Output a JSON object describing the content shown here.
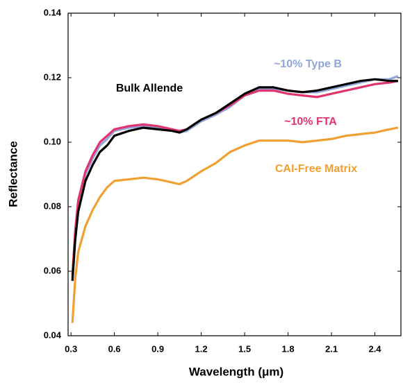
{
  "chart_data": {
    "type": "line",
    "xlabel": "Wavelength (μm)",
    "ylabel": "Reflectance",
    "x": [
      0.31,
      0.33,
      0.35,
      0.4,
      0.45,
      0.5,
      0.55,
      0.6,
      0.7,
      0.8,
      0.9,
      1.0,
      1.05,
      1.1,
      1.2,
      1.3,
      1.4,
      1.5,
      1.6,
      1.7,
      1.8,
      1.9,
      2.0,
      2.1,
      2.2,
      2.3,
      2.4,
      2.5,
      2.56
    ],
    "series": [
      {
        "name": "~10% Type B",
        "color": "#8fa6dc",
        "values": [
          0.058,
          0.071,
          0.08,
          0.09,
          0.095,
          0.099,
          0.101,
          0.1035,
          0.1045,
          0.105,
          0.1045,
          0.1035,
          0.103,
          0.1035,
          0.1065,
          0.1085,
          0.111,
          0.1145,
          0.1165,
          0.1165,
          0.116,
          0.1155,
          0.1155,
          0.1165,
          0.1175,
          0.1185,
          0.1195,
          0.1195,
          0.1205
        ]
      },
      {
        "name": "~10% FTA",
        "color": "#e2336f",
        "values": [
          0.059,
          0.073,
          0.082,
          0.091,
          0.096,
          0.1,
          0.102,
          0.104,
          0.105,
          0.1055,
          0.105,
          0.104,
          0.1035,
          0.104,
          0.107,
          0.109,
          0.1115,
          0.1145,
          0.116,
          0.116,
          0.115,
          0.1145,
          0.114,
          0.115,
          0.116,
          0.117,
          0.118,
          0.1185,
          0.119
        ]
      },
      {
        "name": "Bulk Allende",
        "color": "#000000",
        "values": [
          0.057,
          0.07,
          0.0785,
          0.088,
          0.093,
          0.097,
          0.099,
          0.102,
          0.1035,
          0.1045,
          0.104,
          0.1035,
          0.103,
          0.104,
          0.107,
          0.109,
          0.112,
          0.115,
          0.117,
          0.117,
          0.116,
          0.1155,
          0.116,
          0.117,
          0.118,
          0.119,
          0.1195,
          0.119,
          0.119
        ]
      },
      {
        "name": "CAI-Free Matrix",
        "color": "#f0a032",
        "values": [
          0.044,
          0.058,
          0.066,
          0.074,
          0.079,
          0.083,
          0.086,
          0.088,
          0.0885,
          0.089,
          0.0885,
          0.0875,
          0.087,
          0.088,
          0.091,
          0.0935,
          0.097,
          0.099,
          0.1005,
          0.1005,
          0.1005,
          0.1,
          0.1005,
          0.101,
          0.102,
          0.1025,
          0.103,
          0.104,
          0.1045
        ]
      }
    ],
    "xlim": [
      0.28,
      2.58
    ],
    "xticks": [
      0.3,
      0.6,
      0.9,
      1.2,
      1.5,
      1.8,
      2.1,
      2.4
    ],
    "ylim": [
      0.04,
      0.14
    ],
    "yticks": [
      0.04,
      0.06,
      0.08,
      {
        "value": 0.1,
        "label": "0.10"
      },
      0.12,
      0.14
    ]
  }
}
